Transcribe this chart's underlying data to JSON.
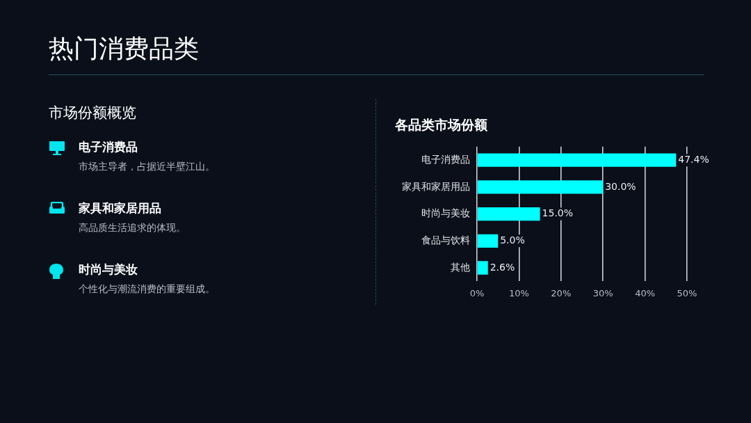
{
  "chart_data": [
    {
      "type": "other",
      "title": "热门消费品类",
      "subtitle": "市场份额概览",
      "annotations": [
        "电子消费品",
        "市场主导者，占据近半壁江山。",
        "家具和家居用品",
        "高品质生活追求的体现。",
        "时尚与美妆",
        "个性化与潮流消费的重要组成。"
      ]
    },
    {
      "type": "bar",
      "orientation": "horizontal",
      "title": "各品类市场份额",
      "categories": [
        "电子消费品",
        "家具和家居用品",
        "时尚与美妆",
        "食品与饮料",
        "其他"
      ],
      "values": [
        47.4,
        30.0,
        15.0,
        5.0,
        2.6
      ],
      "value_labels": [
        "47.4%",
        "30.0%",
        "15.0%",
        "5.0%",
        "2.6%"
      ],
      "color": "#00ffff",
      "xlim": [
        0,
        50
      ],
      "xticks": [
        {
          "value": 0,
          "label": "0%"
        },
        {
          "value": 10,
          "label": "10%"
        },
        {
          "value": 20,
          "label": "20%"
        },
        {
          "value": 30,
          "label": "30%"
        },
        {
          "value": 40,
          "label": "40%"
        },
        {
          "value": 50,
          "label": "50%"
        }
      ],
      "grid": "x",
      "legend": false
    }
  ]
}
